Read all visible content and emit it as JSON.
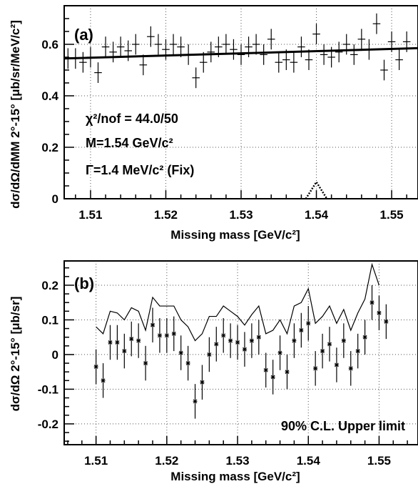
{
  "chart_data": [
    {
      "type": "scatter",
      "panel_label": "(a)",
      "xlabel": "Missing mass [GeV/c²]",
      "ylabel": "dσ/dΩ/dMM 2°-15° [μb/sr/MeV/c²]",
      "xlim": [
        1.5065,
        1.5535
      ],
      "ylim": [
        0,
        0.75
      ],
      "x_ticks": [
        1.51,
        1.52,
        1.53,
        1.54,
        1.55
      ],
      "x_tick_labels": [
        "1.51",
        "1.52",
        "1.53",
        "1.54",
        "1.55"
      ],
      "y_ticks": [
        0,
        0.2,
        0.4,
        0.6
      ],
      "y_tick_labels": [
        "0",
        "0.2",
        "0.4",
        "0.6"
      ],
      "grid": true,
      "annotations": [
        "χ²/nof = 44.0/50",
        "M=1.54 GeV/c²",
        "Γ=1.4 MeV/c² (Fix)"
      ],
      "fit_curve": {
        "x": [
          1.5065,
          1.5535
        ],
        "y": [
          0.545,
          0.585
        ]
      },
      "peak": {
        "center": 1.54,
        "width": 0.0014,
        "height": 0.065
      },
      "points": [
        [
          1.507,
          0.545,
          0.04
        ],
        [
          1.508,
          0.545,
          0.04
        ],
        [
          1.509,
          0.53,
          0.04
        ],
        [
          1.51,
          0.55,
          0.04
        ],
        [
          1.511,
          0.49,
          0.04
        ],
        [
          1.512,
          0.59,
          0.04
        ],
        [
          1.513,
          0.57,
          0.04
        ],
        [
          1.514,
          0.59,
          0.04
        ],
        [
          1.515,
          0.575,
          0.04
        ],
        [
          1.516,
          0.6,
          0.04
        ],
        [
          1.517,
          0.52,
          0.04
        ],
        [
          1.518,
          0.63,
          0.04
        ],
        [
          1.519,
          0.6,
          0.04
        ],
        [
          1.52,
          0.58,
          0.04
        ],
        [
          1.521,
          0.6,
          0.04
        ],
        [
          1.522,
          0.59,
          0.04
        ],
        [
          1.523,
          0.56,
          0.04
        ],
        [
          1.524,
          0.47,
          0.04
        ],
        [
          1.525,
          0.53,
          0.04
        ],
        [
          1.526,
          0.57,
          0.04
        ],
        [
          1.527,
          0.59,
          0.04
        ],
        [
          1.528,
          0.6,
          0.04
        ],
        [
          1.529,
          0.58,
          0.04
        ],
        [
          1.53,
          0.56,
          0.04
        ],
        [
          1.531,
          0.59,
          0.04
        ],
        [
          1.532,
          0.6,
          0.04
        ],
        [
          1.533,
          0.56,
          0.04
        ],
        [
          1.534,
          0.62,
          0.04
        ],
        [
          1.535,
          0.53,
          0.04
        ],
        [
          1.536,
          0.54,
          0.04
        ],
        [
          1.537,
          0.53,
          0.04
        ],
        [
          1.538,
          0.59,
          0.04
        ],
        [
          1.539,
          0.54,
          0.04
        ],
        [
          1.54,
          0.64,
          0.04
        ],
        [
          1.541,
          0.56,
          0.04
        ],
        [
          1.542,
          0.55,
          0.04
        ],
        [
          1.543,
          0.57,
          0.04
        ],
        [
          1.544,
          0.6,
          0.04
        ],
        [
          1.545,
          0.56,
          0.04
        ],
        [
          1.546,
          0.62,
          0.04
        ],
        [
          1.547,
          0.58,
          0.04
        ],
        [
          1.548,
          0.68,
          0.04
        ],
        [
          1.549,
          0.5,
          0.04
        ],
        [
          1.55,
          0.61,
          0.04
        ],
        [
          1.551,
          0.54,
          0.04
        ],
        [
          1.552,
          0.61,
          0.04
        ]
      ]
    },
    {
      "type": "scatter",
      "panel_label": "(b)",
      "xlabel": "Missing mass [GeV/c²]",
      "ylabel": "dσ/dΩ 2°-15° [μb/sr]",
      "xlim": [
        1.5055,
        1.5555
      ],
      "ylim": [
        -0.26,
        0.27
      ],
      "x_ticks": [
        1.51,
        1.52,
        1.53,
        1.54,
        1.55
      ],
      "x_tick_labels": [
        "1.51",
        "1.52",
        "1.53",
        "1.54",
        "1.55"
      ],
      "y_ticks": [
        -0.2,
        -0.1,
        0,
        0.1,
        0.2
      ],
      "y_tick_labels": [
        "-0.2",
        "-0.1",
        "0",
        "0.1",
        "0.2"
      ],
      "grid": true,
      "annotations": [
        "90% C.L. Upper limit"
      ],
      "points": [
        [
          1.51,
          -0.035,
          0.05
        ],
        [
          1.511,
          -0.075,
          0.05
        ],
        [
          1.512,
          0.035,
          0.05
        ],
        [
          1.513,
          0.035,
          0.05
        ],
        [
          1.514,
          0.01,
          0.05
        ],
        [
          1.515,
          0.045,
          0.05
        ],
        [
          1.516,
          0.04,
          0.05
        ],
        [
          1.517,
          -0.025,
          0.05
        ],
        [
          1.518,
          0.085,
          0.05
        ],
        [
          1.519,
          0.055,
          0.05
        ],
        [
          1.52,
          0.055,
          0.05
        ],
        [
          1.521,
          0.06,
          0.05
        ],
        [
          1.522,
          0.005,
          0.05
        ],
        [
          1.523,
          -0.025,
          0.05
        ],
        [
          1.524,
          -0.135,
          0.05
        ],
        [
          1.525,
          -0.08,
          0.05
        ],
        [
          1.526,
          0.0,
          0.05
        ],
        [
          1.527,
          0.03,
          0.05
        ],
        [
          1.528,
          0.055,
          0.05
        ],
        [
          1.529,
          0.04,
          0.05
        ],
        [
          1.53,
          0.035,
          0.05
        ],
        [
          1.531,
          0.015,
          0.05
        ],
        [
          1.532,
          0.04,
          0.05
        ],
        [
          1.533,
          0.05,
          0.05
        ],
        [
          1.534,
          -0.045,
          0.05
        ],
        [
          1.535,
          -0.065,
          0.05
        ],
        [
          1.536,
          0.005,
          0.05
        ],
        [
          1.537,
          -0.05,
          0.05
        ],
        [
          1.538,
          0.04,
          0.05
        ],
        [
          1.539,
          0.07,
          0.05
        ],
        [
          1.54,
          0.09,
          0.05
        ],
        [
          1.541,
          -0.04,
          0.05
        ],
        [
          1.542,
          0.01,
          0.05
        ],
        [
          1.543,
          0.03,
          0.05
        ],
        [
          1.544,
          -0.03,
          0.05
        ],
        [
          1.545,
          0.04,
          0.05
        ],
        [
          1.546,
          -0.04,
          0.05
        ],
        [
          1.547,
          0.01,
          0.05
        ],
        [
          1.548,
          0.05,
          0.05
        ],
        [
          1.549,
          0.15,
          0.05
        ],
        [
          1.55,
          0.12,
          0.05
        ],
        [
          1.551,
          0.095,
          0.05
        ]
      ],
      "upper_limit": {
        "x": [
          1.51,
          1.511,
          1.512,
          1.513,
          1.514,
          1.515,
          1.516,
          1.517,
          1.518,
          1.519,
          1.52,
          1.521,
          1.522,
          1.523,
          1.524,
          1.525,
          1.526,
          1.527,
          1.528,
          1.529,
          1.53,
          1.531,
          1.532,
          1.533,
          1.534,
          1.535,
          1.536,
          1.537,
          1.538,
          1.539,
          1.54,
          1.541,
          1.542,
          1.543,
          1.544,
          1.545,
          1.546,
          1.547,
          1.548,
          1.549,
          1.55
        ],
        "y": [
          0.08,
          0.06,
          0.125,
          0.12,
          0.1,
          0.135,
          0.125,
          0.07,
          0.165,
          0.14,
          0.14,
          0.14,
          0.1,
          0.08,
          0.04,
          0.06,
          0.11,
          0.11,
          0.14,
          0.125,
          0.11,
          0.085,
          0.115,
          0.14,
          0.06,
          0.07,
          0.1,
          0.06,
          0.14,
          0.15,
          0.19,
          0.09,
          0.11,
          0.14,
          0.09,
          0.13,
          0.07,
          0.12,
          0.16,
          0.26,
          0.2
        ]
      }
    }
  ]
}
